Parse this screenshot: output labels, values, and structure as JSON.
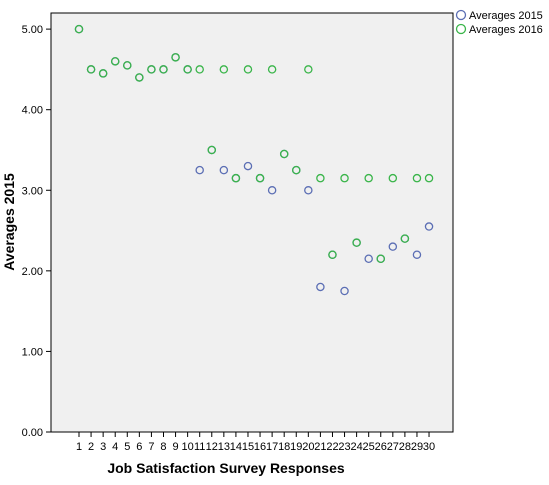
{
  "chart_data": {
    "type": "scatter",
    "title": "",
    "xlabel": "Job Satisfaction Survey Responses",
    "ylabel": "Averages 2015",
    "ylim": [
      0,
      5.2
    ],
    "y_ticks": [
      "0.00",
      "1.00",
      "2.00",
      "3.00",
      "4.00",
      "5.00"
    ],
    "y_tick_values": [
      0,
      1,
      2,
      3,
      4,
      5
    ],
    "x": [
      1,
      2,
      3,
      4,
      5,
      6,
      7,
      8,
      9,
      10,
      11,
      12,
      13,
      14,
      15,
      16,
      17,
      18,
      19,
      20,
      21,
      22,
      23,
      24,
      25,
      26,
      27,
      28,
      29,
      30
    ],
    "x_tick_labels": [
      "1",
      "2",
      "3",
      "4",
      "5",
      "6",
      "7",
      "8",
      "9",
      "10",
      "11",
      "12",
      "13",
      "14",
      "15",
      "16",
      "17",
      "18",
      "19",
      "20",
      "21",
      "22",
      "23",
      "24",
      "25",
      "26",
      "27",
      "28",
      "29",
      "30"
    ],
    "grid": false,
    "legend_position": "top-right",
    "background_color": "#f0f0f0",
    "series": [
      {
        "name": "Averages 2015",
        "color": "#5b6eb4",
        "values": [
          5.0,
          4.5,
          4.45,
          4.6,
          4.55,
          4.4,
          4.5,
          4.5,
          4.65,
          4.5,
          3.25,
          3.5,
          3.25,
          3.15,
          3.3,
          3.15,
          3.0,
          3.45,
          3.25,
          3.0,
          1.8,
          2.2,
          1.75,
          2.35,
          2.15,
          2.15,
          2.3,
          2.4,
          2.2,
          2.55
        ]
      },
      {
        "name": "Averages 2016",
        "color": "#3ab54a",
        "values": [
          5.0,
          4.5,
          4.45,
          4.6,
          4.55,
          4.4,
          4.5,
          4.5,
          4.65,
          4.5,
          4.5,
          3.5,
          4.5,
          3.15,
          4.5,
          3.15,
          4.5,
          3.45,
          3.25,
          4.5,
          3.15,
          2.2,
          3.15,
          2.35,
          3.15,
          2.15,
          3.15,
          2.4,
          3.15,
          3.15
        ]
      }
    ]
  }
}
